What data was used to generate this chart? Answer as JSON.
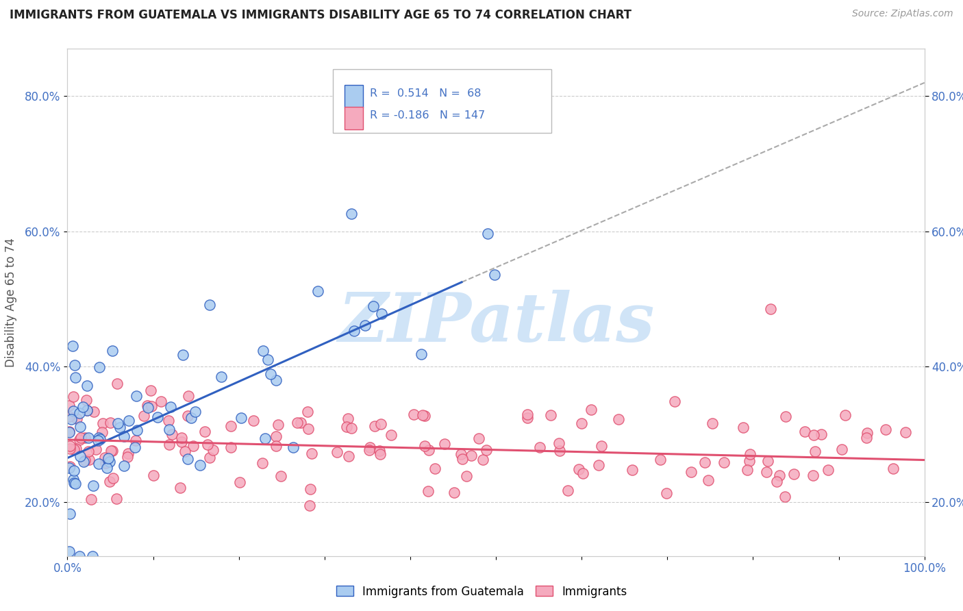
{
  "title": "IMMIGRANTS FROM GUATEMALA VS IMMIGRANTS DISABILITY AGE 65 TO 74 CORRELATION CHART",
  "source": "Source: ZipAtlas.com",
  "ylabel": "Disability Age 65 to 74",
  "xlim": [
    0.0,
    1.0
  ],
  "ylim": [
    0.12,
    0.87
  ],
  "yticks": [
    0.2,
    0.4,
    0.6,
    0.8
  ],
  "ytick_labels": [
    "20.0%",
    "40.0%",
    "60.0%",
    "80.0%"
  ],
  "xtick_vals": [
    0.0,
    0.1,
    0.2,
    0.3,
    0.4,
    0.5,
    0.6,
    0.7,
    0.8,
    0.9,
    1.0
  ],
  "xtick_labels": [
    "0.0%",
    "",
    "",
    "",
    "",
    "",
    "",
    "",
    "",
    "",
    "100.0%"
  ],
  "scatter1_color": "#aaccf0",
  "scatter2_color": "#f5aabe",
  "line1_color": "#3060c0",
  "line2_color": "#e05070",
  "dashed_color": "#aaaaaa",
  "watermark_color": "#d0e4f7",
  "background_color": "#ffffff",
  "grid_color": "#cccccc",
  "tick_color": "#4472c4",
  "title_color": "#222222",
  "source_color": "#999999",
  "ylabel_color": "#555555",
  "blue_trend_x": [
    0.0,
    0.46
  ],
  "blue_trend_y": [
    0.265,
    0.525
  ],
  "dashed_trend_x": [
    0.46,
    1.0
  ],
  "dashed_trend_y": [
    0.525,
    0.82
  ],
  "pink_trend_x": [
    0.0,
    1.0
  ],
  "pink_trend_y": [
    0.292,
    0.262
  ],
  "seed1": 42,
  "seed2": 99
}
